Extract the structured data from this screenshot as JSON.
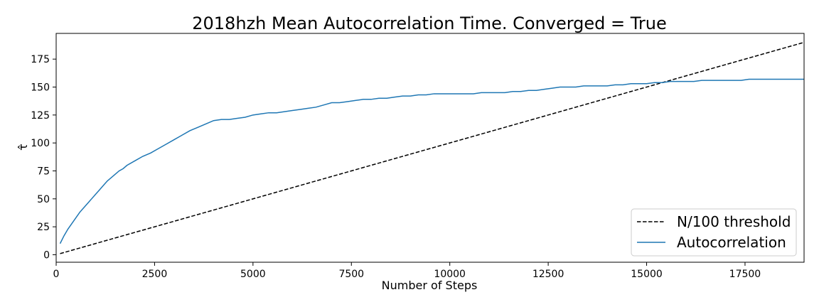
{
  "chart_data": {
    "type": "line",
    "title": "2018hzh Mean Autocorrelation Time. Converged = True",
    "xlabel": "Number of Steps",
    "ylabel": "τ̂",
    "xlim": [
      0,
      19000
    ],
    "ylim": [
      -6.7,
      198
    ],
    "xticks": [
      0,
      2500,
      5000,
      7500,
      10000,
      12500,
      15000,
      17500
    ],
    "yticks": [
      0,
      25,
      50,
      75,
      100,
      125,
      150,
      175
    ],
    "grid": false,
    "legend_position": "lower-right",
    "series": [
      {
        "name": "N/100 threshold",
        "style": "dashed",
        "color": "#000000",
        "points": [
          [
            100,
            1
          ],
          [
            19000,
            190
          ]
        ]
      },
      {
        "name": "Autocorrelation",
        "style": "solid",
        "color": "#1f77b4",
        "points": [
          [
            100,
            10
          ],
          [
            200,
            17
          ],
          [
            300,
            23
          ],
          [
            400,
            28
          ],
          [
            500,
            33
          ],
          [
            600,
            38
          ],
          [
            700,
            42
          ],
          [
            800,
            46
          ],
          [
            900,
            50
          ],
          [
            1000,
            54
          ],
          [
            1100,
            58
          ],
          [
            1200,
            62
          ],
          [
            1300,
            66
          ],
          [
            1400,
            69
          ],
          [
            1500,
            72
          ],
          [
            1600,
            75
          ],
          [
            1700,
            77
          ],
          [
            1800,
            80
          ],
          [
            2000,
            84
          ],
          [
            2200,
            88
          ],
          [
            2400,
            91
          ],
          [
            2600,
            95
          ],
          [
            2800,
            99
          ],
          [
            3000,
            103
          ],
          [
            3200,
            107
          ],
          [
            3400,
            111
          ],
          [
            3600,
            114
          ],
          [
            3800,
            117
          ],
          [
            4000,
            120
          ],
          [
            4200,
            121
          ],
          [
            4400,
            121
          ],
          [
            4600,
            122
          ],
          [
            4800,
            123
          ],
          [
            5000,
            125
          ],
          [
            5200,
            126
          ],
          [
            5400,
            127
          ],
          [
            5600,
            127
          ],
          [
            5800,
            128
          ],
          [
            6000,
            129
          ],
          [
            6200,
            130
          ],
          [
            6400,
            131
          ],
          [
            6600,
            132
          ],
          [
            6800,
            134
          ],
          [
            7000,
            136
          ],
          [
            7200,
            136
          ],
          [
            7400,
            137
          ],
          [
            7600,
            138
          ],
          [
            7800,
            139
          ],
          [
            8000,
            139
          ],
          [
            8200,
            140
          ],
          [
            8400,
            140
          ],
          [
            8600,
            141
          ],
          [
            8800,
            142
          ],
          [
            9000,
            142
          ],
          [
            9200,
            143
          ],
          [
            9400,
            143
          ],
          [
            9600,
            144
          ],
          [
            9800,
            144
          ],
          [
            10000,
            144
          ],
          [
            10200,
            144
          ],
          [
            10400,
            144
          ],
          [
            10600,
            144
          ],
          [
            10800,
            145
          ],
          [
            11000,
            145
          ],
          [
            11200,
            145
          ],
          [
            11400,
            145
          ],
          [
            11600,
            146
          ],
          [
            11800,
            146
          ],
          [
            12000,
            147
          ],
          [
            12200,
            147
          ],
          [
            12400,
            148
          ],
          [
            12600,
            149
          ],
          [
            12800,
            150
          ],
          [
            13000,
            150
          ],
          [
            13200,
            150
          ],
          [
            13400,
            151
          ],
          [
            13600,
            151
          ],
          [
            13800,
            151
          ],
          [
            14000,
            151
          ],
          [
            14200,
            152
          ],
          [
            14400,
            152
          ],
          [
            14600,
            153
          ],
          [
            14800,
            153
          ],
          [
            15000,
            153
          ],
          [
            15200,
            154
          ],
          [
            15400,
            154
          ],
          [
            15600,
            155
          ],
          [
            15800,
            155
          ],
          [
            16000,
            155
          ],
          [
            16200,
            155
          ],
          [
            16400,
            156
          ],
          [
            16600,
            156
          ],
          [
            16800,
            156
          ],
          [
            17000,
            156
          ],
          [
            17200,
            156
          ],
          [
            17400,
            156
          ],
          [
            17600,
            157
          ],
          [
            17800,
            157
          ],
          [
            18000,
            157
          ],
          [
            18200,
            157
          ],
          [
            18400,
            157
          ],
          [
            18600,
            157
          ],
          [
            18800,
            157
          ],
          [
            19000,
            157
          ]
        ]
      }
    ]
  }
}
